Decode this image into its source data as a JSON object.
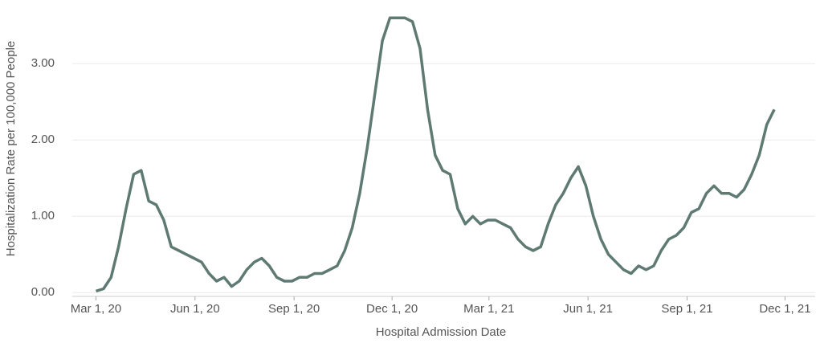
{
  "chart_data": {
    "type": "line",
    "xlabel": "Hospital Admission Date",
    "ylabel": "Hospitalization Rate per 100,000 People",
    "x": [
      "2020-03-01",
      "2020-03-08",
      "2020-03-15",
      "2020-03-22",
      "2020-03-29",
      "2020-04-05",
      "2020-04-12",
      "2020-04-19",
      "2020-04-26",
      "2020-05-03",
      "2020-05-10",
      "2020-05-17",
      "2020-05-24",
      "2020-05-31",
      "2020-06-07",
      "2020-06-14",
      "2020-06-21",
      "2020-06-28",
      "2020-07-05",
      "2020-07-12",
      "2020-07-19",
      "2020-07-26",
      "2020-08-02",
      "2020-08-09",
      "2020-08-16",
      "2020-08-23",
      "2020-08-30",
      "2020-09-06",
      "2020-09-13",
      "2020-09-20",
      "2020-09-27",
      "2020-10-04",
      "2020-10-11",
      "2020-10-18",
      "2020-10-25",
      "2020-11-01",
      "2020-11-08",
      "2020-11-15",
      "2020-11-22",
      "2020-11-29",
      "2020-12-06",
      "2020-12-13",
      "2020-12-20",
      "2020-12-27",
      "2021-01-03",
      "2021-01-10",
      "2021-01-17",
      "2021-01-24",
      "2021-01-31",
      "2021-02-07",
      "2021-02-14",
      "2021-02-21",
      "2021-02-28",
      "2021-03-07",
      "2021-03-14",
      "2021-03-21",
      "2021-03-28",
      "2021-04-04",
      "2021-04-11",
      "2021-04-18",
      "2021-04-25",
      "2021-05-02",
      "2021-05-09",
      "2021-05-16",
      "2021-05-23",
      "2021-05-30",
      "2021-06-06",
      "2021-06-13",
      "2021-06-20",
      "2021-06-27",
      "2021-07-04",
      "2021-07-11",
      "2021-07-18",
      "2021-07-25",
      "2021-08-01",
      "2021-08-08",
      "2021-08-15",
      "2021-08-22",
      "2021-08-29",
      "2021-09-05",
      "2021-09-12",
      "2021-09-19",
      "2021-09-26",
      "2021-10-03",
      "2021-10-10",
      "2021-10-17",
      "2021-10-24",
      "2021-10-31",
      "2021-11-07",
      "2021-11-14",
      "2021-11-21"
    ],
    "series": [
      {
        "name": "Hospitalization Rate",
        "color": "#5f7a72",
        "values": [
          0.02,
          0.05,
          0.2,
          0.6,
          1.1,
          1.55,
          1.6,
          1.2,
          1.15,
          0.95,
          0.6,
          0.55,
          0.5,
          0.45,
          0.4,
          0.25,
          0.15,
          0.2,
          0.08,
          0.15,
          0.3,
          0.4,
          0.45,
          0.35,
          0.2,
          0.15,
          0.15,
          0.2,
          0.2,
          0.25,
          0.25,
          0.3,
          0.35,
          0.55,
          0.85,
          1.3,
          1.9,
          2.6,
          3.3,
          3.6,
          3.6,
          3.6,
          3.55,
          3.2,
          2.4,
          1.8,
          1.6,
          1.55,
          1.1,
          0.9,
          1.0,
          0.9,
          0.95,
          0.95,
          0.9,
          0.85,
          0.7,
          0.6,
          0.55,
          0.6,
          0.9,
          1.15,
          1.3,
          1.5,
          1.65,
          1.4,
          1.0,
          0.7,
          0.5,
          0.4,
          0.3,
          0.25,
          0.35,
          0.3,
          0.35,
          0.55,
          0.7,
          0.75,
          0.85,
          1.05,
          1.1,
          1.3,
          1.4,
          1.3,
          1.3,
          1.25,
          1.35,
          1.55,
          1.8,
          2.2,
          2.4
        ]
      }
    ],
    "xlim": [
      "2020-02-08",
      "2021-12-29"
    ],
    "xticks": [
      {
        "value": "2020-03-01",
        "label": "Mar 1, 20"
      },
      {
        "value": "2020-06-01",
        "label": "Jun 1, 20"
      },
      {
        "value": "2020-09-01",
        "label": "Sep 1, 20"
      },
      {
        "value": "2020-12-01",
        "label": "Dec 1, 20"
      },
      {
        "value": "2021-03-01",
        "label": "Mar 1, 21"
      },
      {
        "value": "2021-06-01",
        "label": "Jun 1, 21"
      },
      {
        "value": "2021-09-01",
        "label": "Sep 1, 21"
      },
      {
        "value": "2021-12-01",
        "label": "Dec 1, 21"
      }
    ],
    "ylim": [
      -0.05,
      3.75
    ],
    "yticks": [
      {
        "value": 0,
        "label": "0.00"
      },
      {
        "value": 1,
        "label": "1.00"
      },
      {
        "value": 2,
        "label": "2.00"
      },
      {
        "value": 3,
        "label": "3.00"
      }
    ],
    "grid": true
  }
}
